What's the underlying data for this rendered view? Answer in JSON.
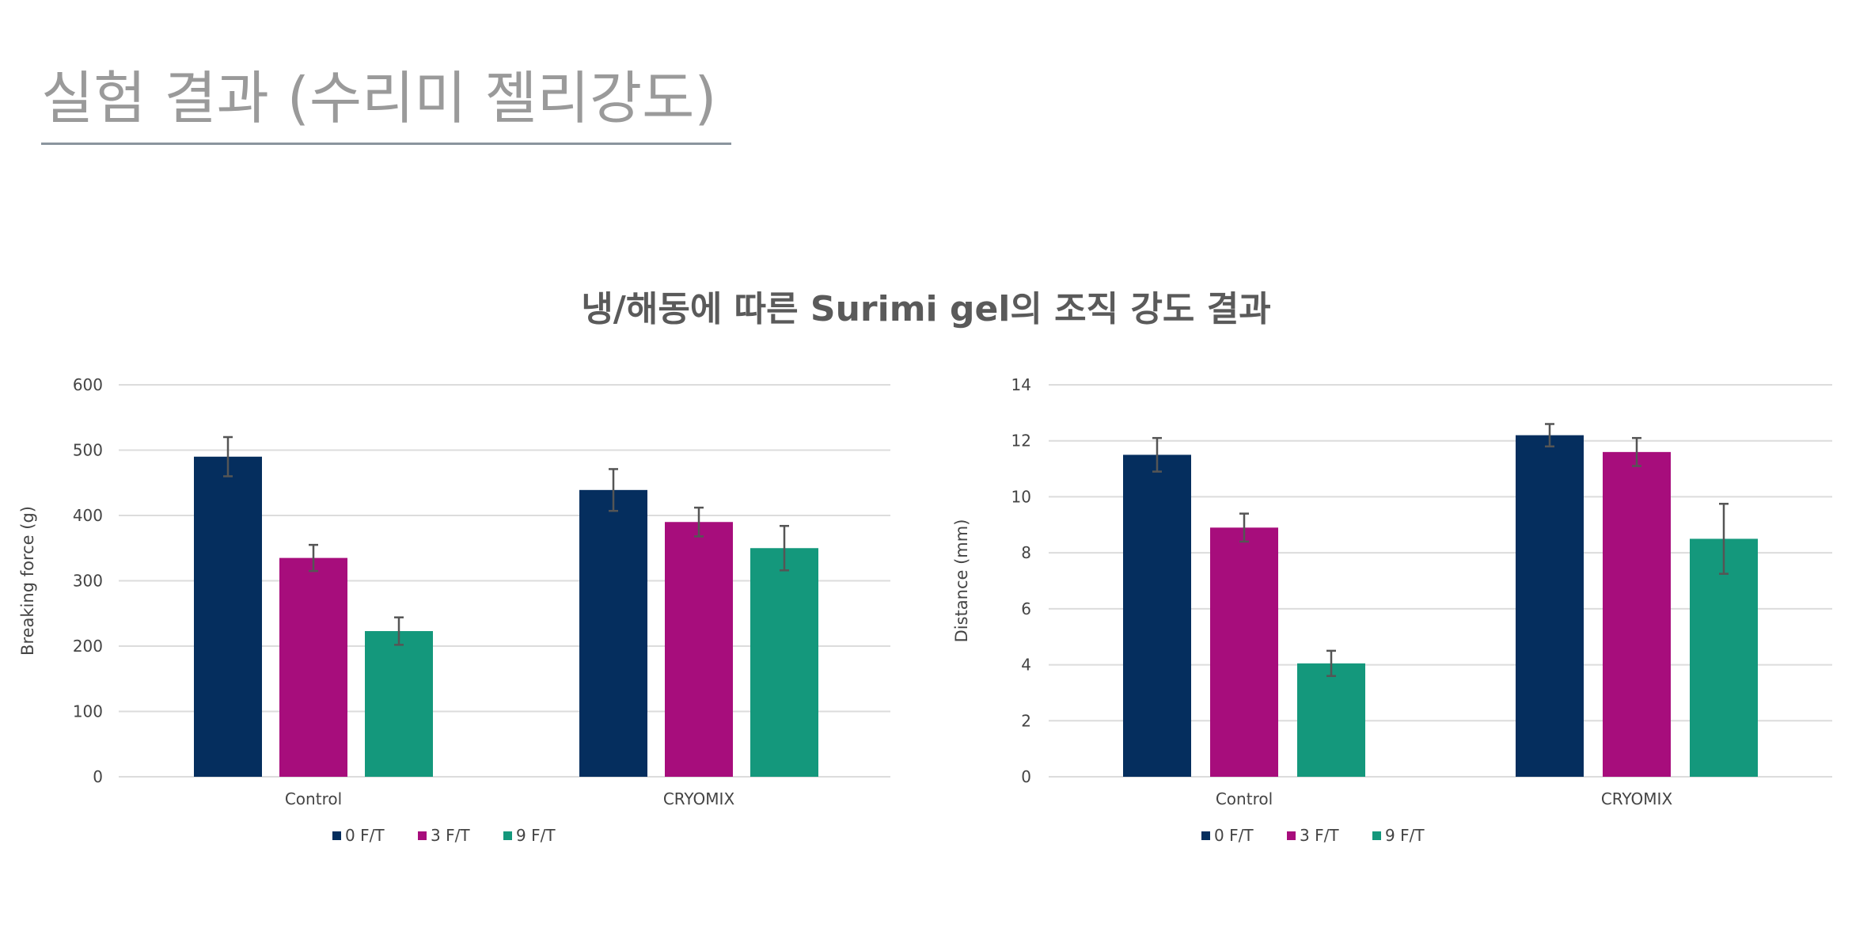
{
  "page": {
    "title": "실험 결과 (수리미 젤리강도)",
    "chart_heading": "냉/해동에 따른 Surimi gel의 조직 강도 결과"
  },
  "colors": {
    "0 F/T": "#052e5e",
    "3 F/T": "#a70d7c",
    "9 F/T": "#14987c",
    "grid": "#dcdcdc",
    "error_bar": "#555555"
  },
  "chart_data": [
    {
      "type": "bar",
      "title": "",
      "xlabel": "",
      "ylabel": "Breaking force (g)",
      "ylim": [
        0,
        600
      ],
      "yticks": [
        "0",
        "100",
        "200",
        "300",
        "400",
        "500",
        "600"
      ],
      "grid": true,
      "legend_position": "bottom",
      "categories": [
        "Control",
        "CRYOMIX"
      ],
      "series": [
        {
          "name": "0 F/T",
          "values": [
            490,
            439
          ],
          "errors": [
            30,
            32
          ]
        },
        {
          "name": "3 F/T",
          "values": [
            335,
            390
          ],
          "errors": [
            20,
            22
          ]
        },
        {
          "name": "9 F/T",
          "values": [
            223,
            350
          ],
          "errors": [
            21,
            34
          ]
        }
      ]
    },
    {
      "type": "bar",
      "title": "",
      "xlabel": "",
      "ylabel": "Distance (mm)",
      "ylim": [
        0,
        14
      ],
      "yticks": [
        "0",
        "2",
        "4",
        "6",
        "8",
        "10",
        "12",
        "14"
      ],
      "grid": true,
      "legend_position": "bottom",
      "categories": [
        "Control",
        "CRYOMIX"
      ],
      "series": [
        {
          "name": "0 F/T",
          "values": [
            11.5,
            12.2
          ],
          "errors": [
            0.6,
            0.4
          ]
        },
        {
          "name": "3 F/T",
          "values": [
            8.9,
            11.6
          ],
          "errors": [
            0.5,
            0.5
          ]
        },
        {
          "name": "9 F/T",
          "values": [
            4.05,
            8.5
          ],
          "errors": [
            0.45,
            1.25
          ]
        }
      ]
    }
  ]
}
